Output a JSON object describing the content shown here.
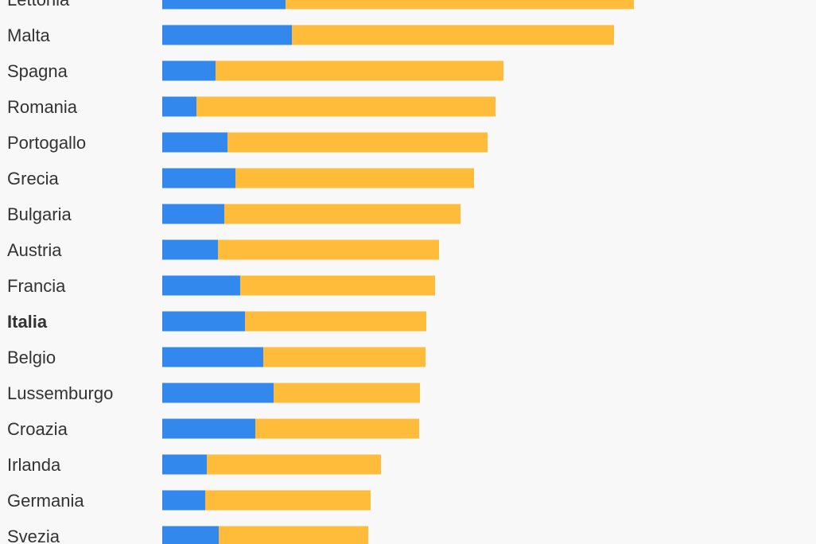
{
  "chart_data": {
    "type": "bar",
    "orientation": "horizontal",
    "stacked": true,
    "categories": [
      "Lettonia",
      "Malta",
      "Spagna",
      "Romania",
      "Portogallo",
      "Grecia",
      "Bulgaria",
      "Austria",
      "Francia",
      "Italia",
      "Belgio",
      "Lussemburgo",
      "Croazia",
      "Irlanda",
      "Germania",
      "Svezia"
    ],
    "highlight": "Italia",
    "series": [
      {
        "color": "#3388ee",
        "values": [
          155,
          163,
          67,
          43,
          82,
          92,
          78,
          70,
          98,
          104,
          127,
          140,
          117,
          56,
          54,
          71
        ]
      },
      {
        "color": "#ffbb3a",
        "values": [
          438,
          405,
          362,
          376,
          327,
          300,
          297,
          278,
          245,
          228,
          204,
          184,
          206,
          219,
          208,
          188
        ]
      }
    ],
    "title": "",
    "xlabel": "",
    "ylabel": "",
    "grid": false,
    "legend": "none"
  }
}
